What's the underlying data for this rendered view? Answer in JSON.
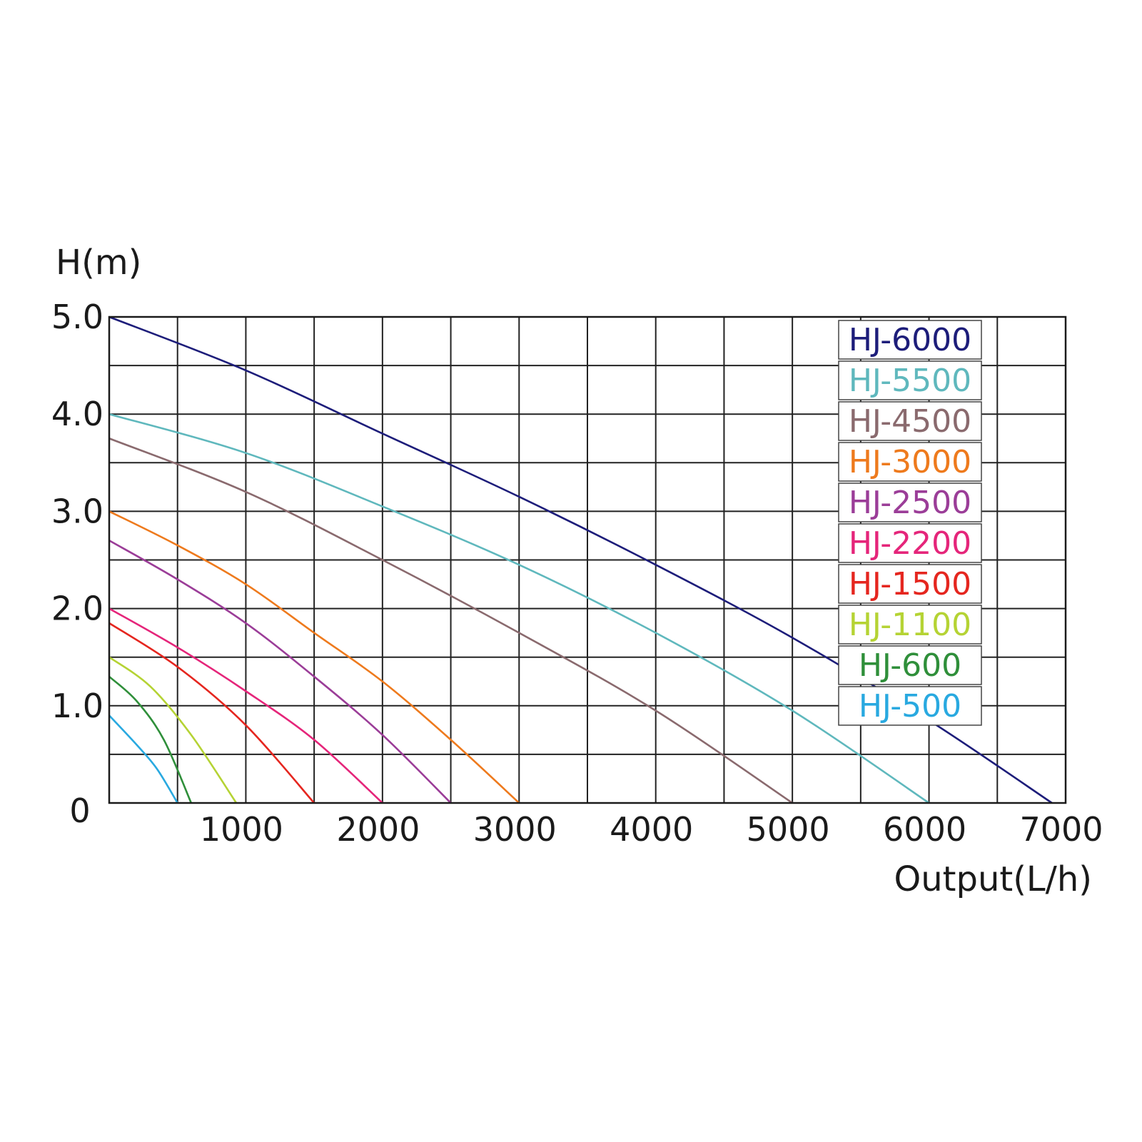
{
  "chart_data": {
    "type": "line",
    "title": "",
    "ylabel": "H(m)",
    "xlabel": "Output(L/h)",
    "xlim": [
      0,
      7000
    ],
    "ylim": [
      0,
      5.0
    ],
    "grid": true,
    "legend_position": "top-right",
    "x_ticks": [
      1000,
      2000,
      3000,
      4000,
      5000,
      6000,
      7000
    ],
    "x_tick_labels": [
      "1000",
      "2000",
      "3000",
      "4000",
      "5000",
      "6000",
      "7000"
    ],
    "y_ticks": [
      0,
      1.0,
      2.0,
      3.0,
      4.0,
      5.0
    ],
    "y_tick_labels": [
      "0",
      "1.0",
      "2.0",
      "3.0",
      "4.0",
      "5.0"
    ],
    "series": [
      {
        "name": "HJ-6000",
        "color": "#1d1d7a",
        "points": [
          [
            0,
            5.0
          ],
          [
            1000,
            4.45
          ],
          [
            2000,
            3.8
          ],
          [
            3000,
            3.15
          ],
          [
            4000,
            2.45
          ],
          [
            5000,
            1.7
          ],
          [
            6000,
            0.85
          ],
          [
            6900,
            0
          ]
        ]
      },
      {
        "name": "HJ-5500",
        "color": "#5fb8bd",
        "points": [
          [
            0,
            4.0
          ],
          [
            1000,
            3.6
          ],
          [
            2000,
            3.05
          ],
          [
            3000,
            2.45
          ],
          [
            4000,
            1.75
          ],
          [
            5000,
            0.95
          ],
          [
            6000,
            0
          ]
        ]
      },
      {
        "name": "HJ-4500",
        "color": "#8a6a6e",
        "points": [
          [
            0,
            3.75
          ],
          [
            1000,
            3.2
          ],
          [
            2000,
            2.5
          ],
          [
            3000,
            1.75
          ],
          [
            4000,
            0.95
          ],
          [
            5000,
            0
          ]
        ]
      },
      {
        "name": "HJ-3000",
        "color": "#ee7a1d",
        "points": [
          [
            0,
            3.0
          ],
          [
            500,
            2.65
          ],
          [
            1000,
            2.25
          ],
          [
            1500,
            1.75
          ],
          [
            2000,
            1.25
          ],
          [
            2500,
            0.65
          ],
          [
            3000,
            0
          ]
        ]
      },
      {
        "name": "HJ-2500",
        "color": "#9b3d98",
        "points": [
          [
            0,
            2.7
          ],
          [
            500,
            2.3
          ],
          [
            1000,
            1.85
          ],
          [
            1500,
            1.3
          ],
          [
            2000,
            0.7
          ],
          [
            2500,
            0
          ]
        ]
      },
      {
        "name": "HJ-2200",
        "color": "#e5257a",
        "points": [
          [
            0,
            2.0
          ],
          [
            500,
            1.6
          ],
          [
            1000,
            1.15
          ],
          [
            1500,
            0.65
          ],
          [
            2000,
            0
          ]
        ]
      },
      {
        "name": "HJ-1500",
        "color": "#e5261f",
        "points": [
          [
            0,
            1.85
          ],
          [
            500,
            1.4
          ],
          [
            1000,
            0.8
          ],
          [
            1500,
            0
          ]
        ]
      },
      {
        "name": "HJ-1100",
        "color": "#b5d334",
        "points": [
          [
            0,
            1.5
          ],
          [
            300,
            1.2
          ],
          [
            600,
            0.7
          ],
          [
            930,
            0
          ]
        ]
      },
      {
        "name": "HJ-600",
        "color": "#2f8f3a",
        "points": [
          [
            0,
            1.3
          ],
          [
            200,
            1.05
          ],
          [
            400,
            0.65
          ],
          [
            600,
            0
          ]
        ]
      },
      {
        "name": "HJ-500",
        "color": "#29a9e0",
        "points": [
          [
            0,
            0.9
          ],
          [
            200,
            0.6
          ],
          [
            350,
            0.35
          ],
          [
            500,
            0
          ]
        ]
      }
    ]
  }
}
